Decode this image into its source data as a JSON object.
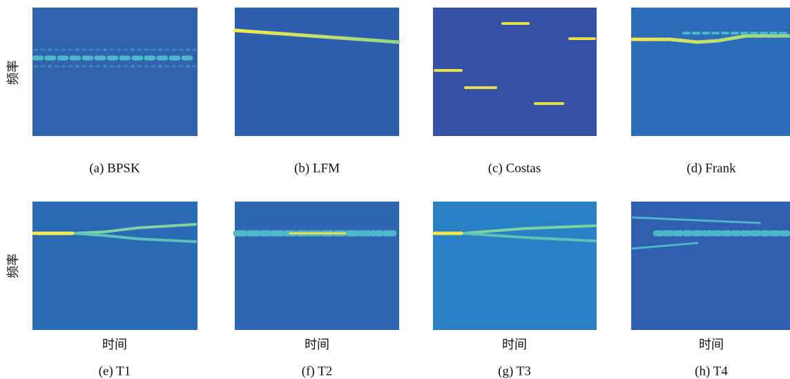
{
  "y_labels": [
    "频率",
    "频率"
  ],
  "panels": [
    {
      "caption": "(a) BPSK"
    },
    {
      "caption": "(b) LFM"
    },
    {
      "caption": "(c) Costas"
    },
    {
      "caption": "(d) Frank"
    },
    {
      "caption": "(e) T1",
      "x_label": "时间"
    },
    {
      "caption": "(f) T2",
      "x_label": "时间"
    },
    {
      "caption": "(g) T3",
      "x_label": "时间"
    },
    {
      "caption": "(h) T4",
      "x_label": "时间"
    }
  ]
}
